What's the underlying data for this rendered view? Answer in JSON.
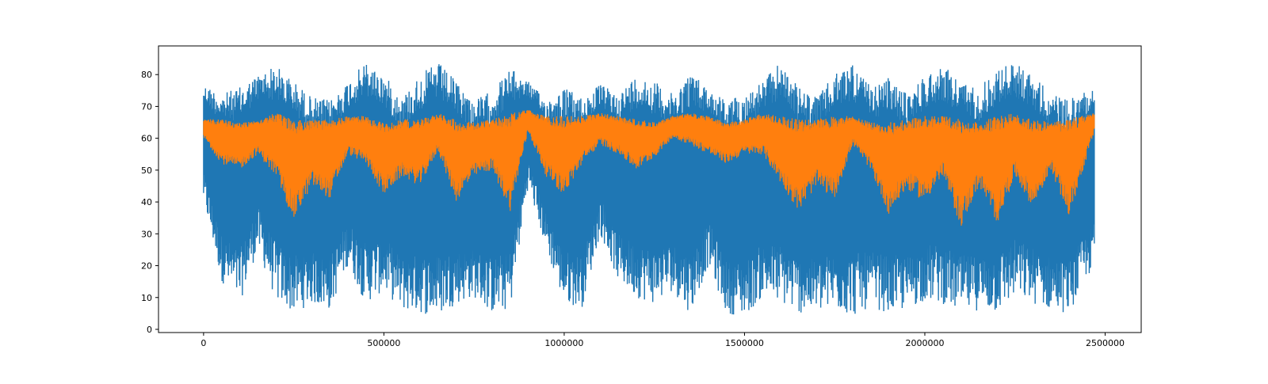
{
  "chart_data": {
    "type": "line",
    "title": "",
    "xlabel": "",
    "ylabel": "",
    "xlim": [
      -125000,
      2600000
    ],
    "ylim": [
      -1,
      89
    ],
    "x_ticks": [
      {
        "value": 0,
        "label": "0"
      },
      {
        "value": 500000,
        "label": "500000"
      },
      {
        "value": 1000000,
        "label": "1000000"
      },
      {
        "value": 1500000,
        "label": "1500000"
      },
      {
        "value": 2000000,
        "label": "2000000"
      },
      {
        "value": 2500000,
        "label": "2500000"
      }
    ],
    "y_ticks": [
      {
        "value": 0,
        "label": "0"
      },
      {
        "value": 10,
        "label": "10"
      },
      {
        "value": 20,
        "label": "20"
      },
      {
        "value": 30,
        "label": "30"
      },
      {
        "value": 40,
        "label": "40"
      },
      {
        "value": 50,
        "label": "50"
      },
      {
        "value": 60,
        "label": "60"
      },
      {
        "value": 70,
        "label": "70"
      },
      {
        "value": 80,
        "label": "80"
      }
    ],
    "grid": false,
    "legend": "none",
    "series": [
      {
        "color": "#1f77b4",
        "x": [
          0,
          50000,
          100000,
          150000,
          200000,
          250000,
          300000,
          350000,
          400000,
          450000,
          500000,
          550000,
          600000,
          650000,
          700000,
          750000,
          800000,
          850000,
          900000,
          950000,
          1000000,
          1050000,
          1100000,
          1150000,
          1200000,
          1250000,
          1300000,
          1350000,
          1400000,
          1450000,
          1500000,
          1550000,
          1600000,
          1650000,
          1700000,
          1750000,
          1800000,
          1850000,
          1900000,
          1950000,
          2000000,
          2050000,
          2100000,
          2150000,
          2200000,
          2250000,
          2300000,
          2350000,
          2400000,
          2470000
        ],
        "upper": [
          77,
          74,
          76,
          80,
          83,
          78,
          73,
          72,
          78,
          84,
          80,
          73,
          80,
          84,
          78,
          72,
          75,
          82,
          78,
          72,
          76,
          73,
          77,
          74,
          80,
          78,
          74,
          81,
          76,
          72,
          74,
          78,
          84,
          76,
          73,
          80,
          84,
          76,
          79,
          74,
          80,
          83,
          78,
          76,
          82,
          84,
          80,
          74,
          72,
          77
        ],
        "lower": [
          40,
          15,
          8,
          25,
          9,
          5,
          8,
          6,
          20,
          8,
          12,
          6,
          5,
          4,
          8,
          10,
          5,
          6,
          45,
          25,
          8,
          7,
          30,
          15,
          10,
          8,
          12,
          5,
          20,
          5,
          4,
          10,
          8,
          5,
          5,
          6,
          4,
          7,
          5,
          6,
          9,
          8,
          5,
          6,
          5,
          10,
          8,
          6,
          5,
          20
        ]
      },
      {
        "color": "#ff7f0e",
        "x": [
          0,
          50000,
          100000,
          150000,
          200000,
          250000,
          300000,
          350000,
          400000,
          450000,
          500000,
          550000,
          600000,
          650000,
          700000,
          750000,
          800000,
          850000,
          900000,
          950000,
          1000000,
          1050000,
          1100000,
          1150000,
          1200000,
          1250000,
          1300000,
          1350000,
          1400000,
          1450000,
          1500000,
          1550000,
          1600000,
          1650000,
          1700000,
          1750000,
          1800000,
          1850000,
          1900000,
          1950000,
          2000000,
          2050000,
          2100000,
          2150000,
          2200000,
          2250000,
          2300000,
          2350000,
          2400000,
          2470000
        ],
        "upper": [
          66,
          66,
          65,
          66,
          68,
          66,
          66,
          66,
          67,
          67,
          65,
          66,
          66,
          68,
          66,
          65,
          66,
          68,
          69,
          67,
          67,
          67,
          68,
          67,
          66,
          65,
          67,
          68,
          67,
          65,
          66,
          68,
          67,
          66,
          66,
          67,
          67,
          65,
          65,
          66,
          67,
          67,
          66,
          65,
          67,
          68,
          66,
          65,
          66,
          68
        ],
        "lower": [
          60,
          52,
          50,
          55,
          48,
          34,
          45,
          41,
          55,
          52,
          42,
          48,
          45,
          56,
          40,
          48,
          50,
          37,
          62,
          48,
          42,
          52,
          58,
          55,
          50,
          54,
          60,
          58,
          55,
          52,
          55,
          55,
          46,
          37,
          45,
          41,
          58,
          50,
          36,
          44,
          40,
          48,
          32,
          45,
          33,
          48,
          38,
          50,
          35,
          62
        ]
      }
    ]
  }
}
